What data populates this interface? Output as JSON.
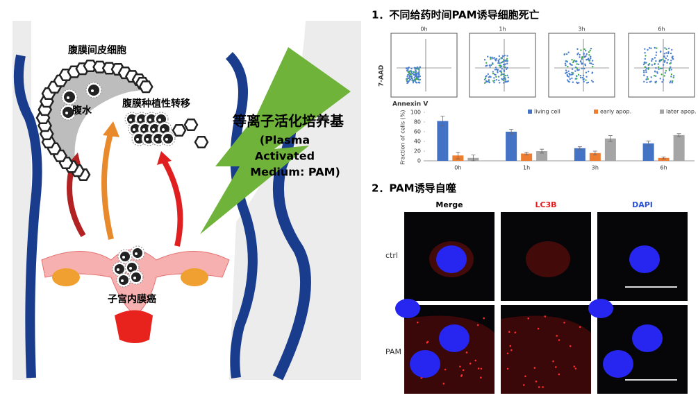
{
  "diagram": {
    "mesothelial_label": "腹膜间皮细胞",
    "ascites_label": "腹水",
    "metastasis_label": "腹膜种植性转移",
    "pam_title": "等离子活化培养基",
    "pam_subtitle": [
      "(Plasma",
      "Activated",
      "Medium: PAM)"
    ],
    "cancer_label": "子宫内膜癌"
  },
  "section1": {
    "title": "1．不同给药时间PAM诱导细胞死亡",
    "flow_panels": [
      "0h",
      "1h",
      "3h",
      "6h"
    ],
    "flow_y_label": "7-AAD",
    "flow_x_label": "Annexin V"
  },
  "chart_data": {
    "type": "bar",
    "y_label": "Fraction of cells (%)",
    "categories": [
      "0h",
      "1h",
      "3h",
      "6h"
    ],
    "series": [
      {
        "name": "living cell",
        "color": "#4472c4",
        "values": [
          82,
          60,
          26,
          36
        ],
        "errors": [
          10,
          5,
          3,
          5
        ]
      },
      {
        "name": "early apop.",
        "color": "#ed7d31",
        "values": [
          11,
          15,
          16,
          6
        ],
        "errors": [
          7,
          3,
          4,
          2
        ]
      },
      {
        "name": "later apop.",
        "color": "#a5a5a5",
        "values": [
          6,
          20,
          46,
          53
        ],
        "errors": [
          6,
          4,
          6,
          3
        ]
      }
    ],
    "ylim": [
      0,
      100
    ],
    "yticks": [
      0,
      20,
      40,
      60,
      80,
      100
    ]
  },
  "section2": {
    "title": "2．PAM诱导自噬",
    "columns": [
      "Merge",
      "LC3B",
      "DAPI"
    ],
    "rows": [
      "ctrl",
      "PAM"
    ]
  }
}
